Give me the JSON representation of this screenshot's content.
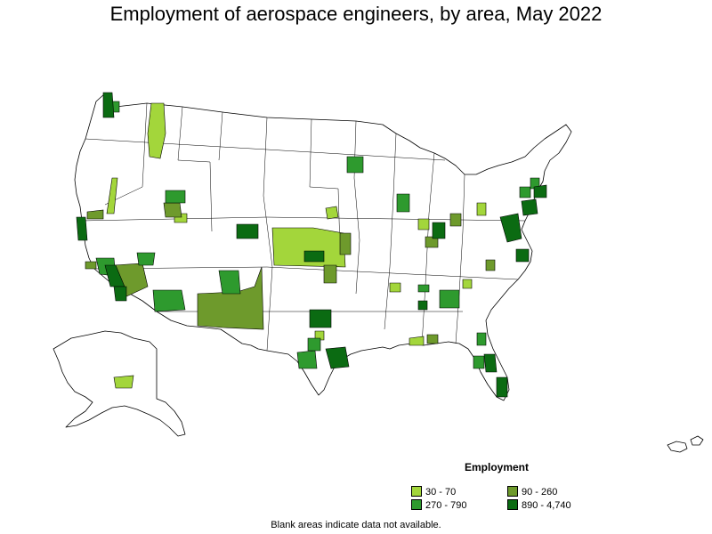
{
  "title": "Employment of aerospace engineers, by area, May 2022",
  "legend": {
    "title": "Employment",
    "items": [
      {
        "label": "30 - 70",
        "color": "#a3d63b"
      },
      {
        "label": "90 - 260",
        "color": "#6e9a2c"
      },
      {
        "label": "270 - 790",
        "color": "#2e9a2e"
      },
      {
        "label": "890 - 4,740",
        "color": "#0b6b12"
      }
    ]
  },
  "footnote": "Blank areas indicate data not available.",
  "colors": {
    "background": "#ffffff",
    "no_data": "#ffffff",
    "border": "#000000"
  }
}
